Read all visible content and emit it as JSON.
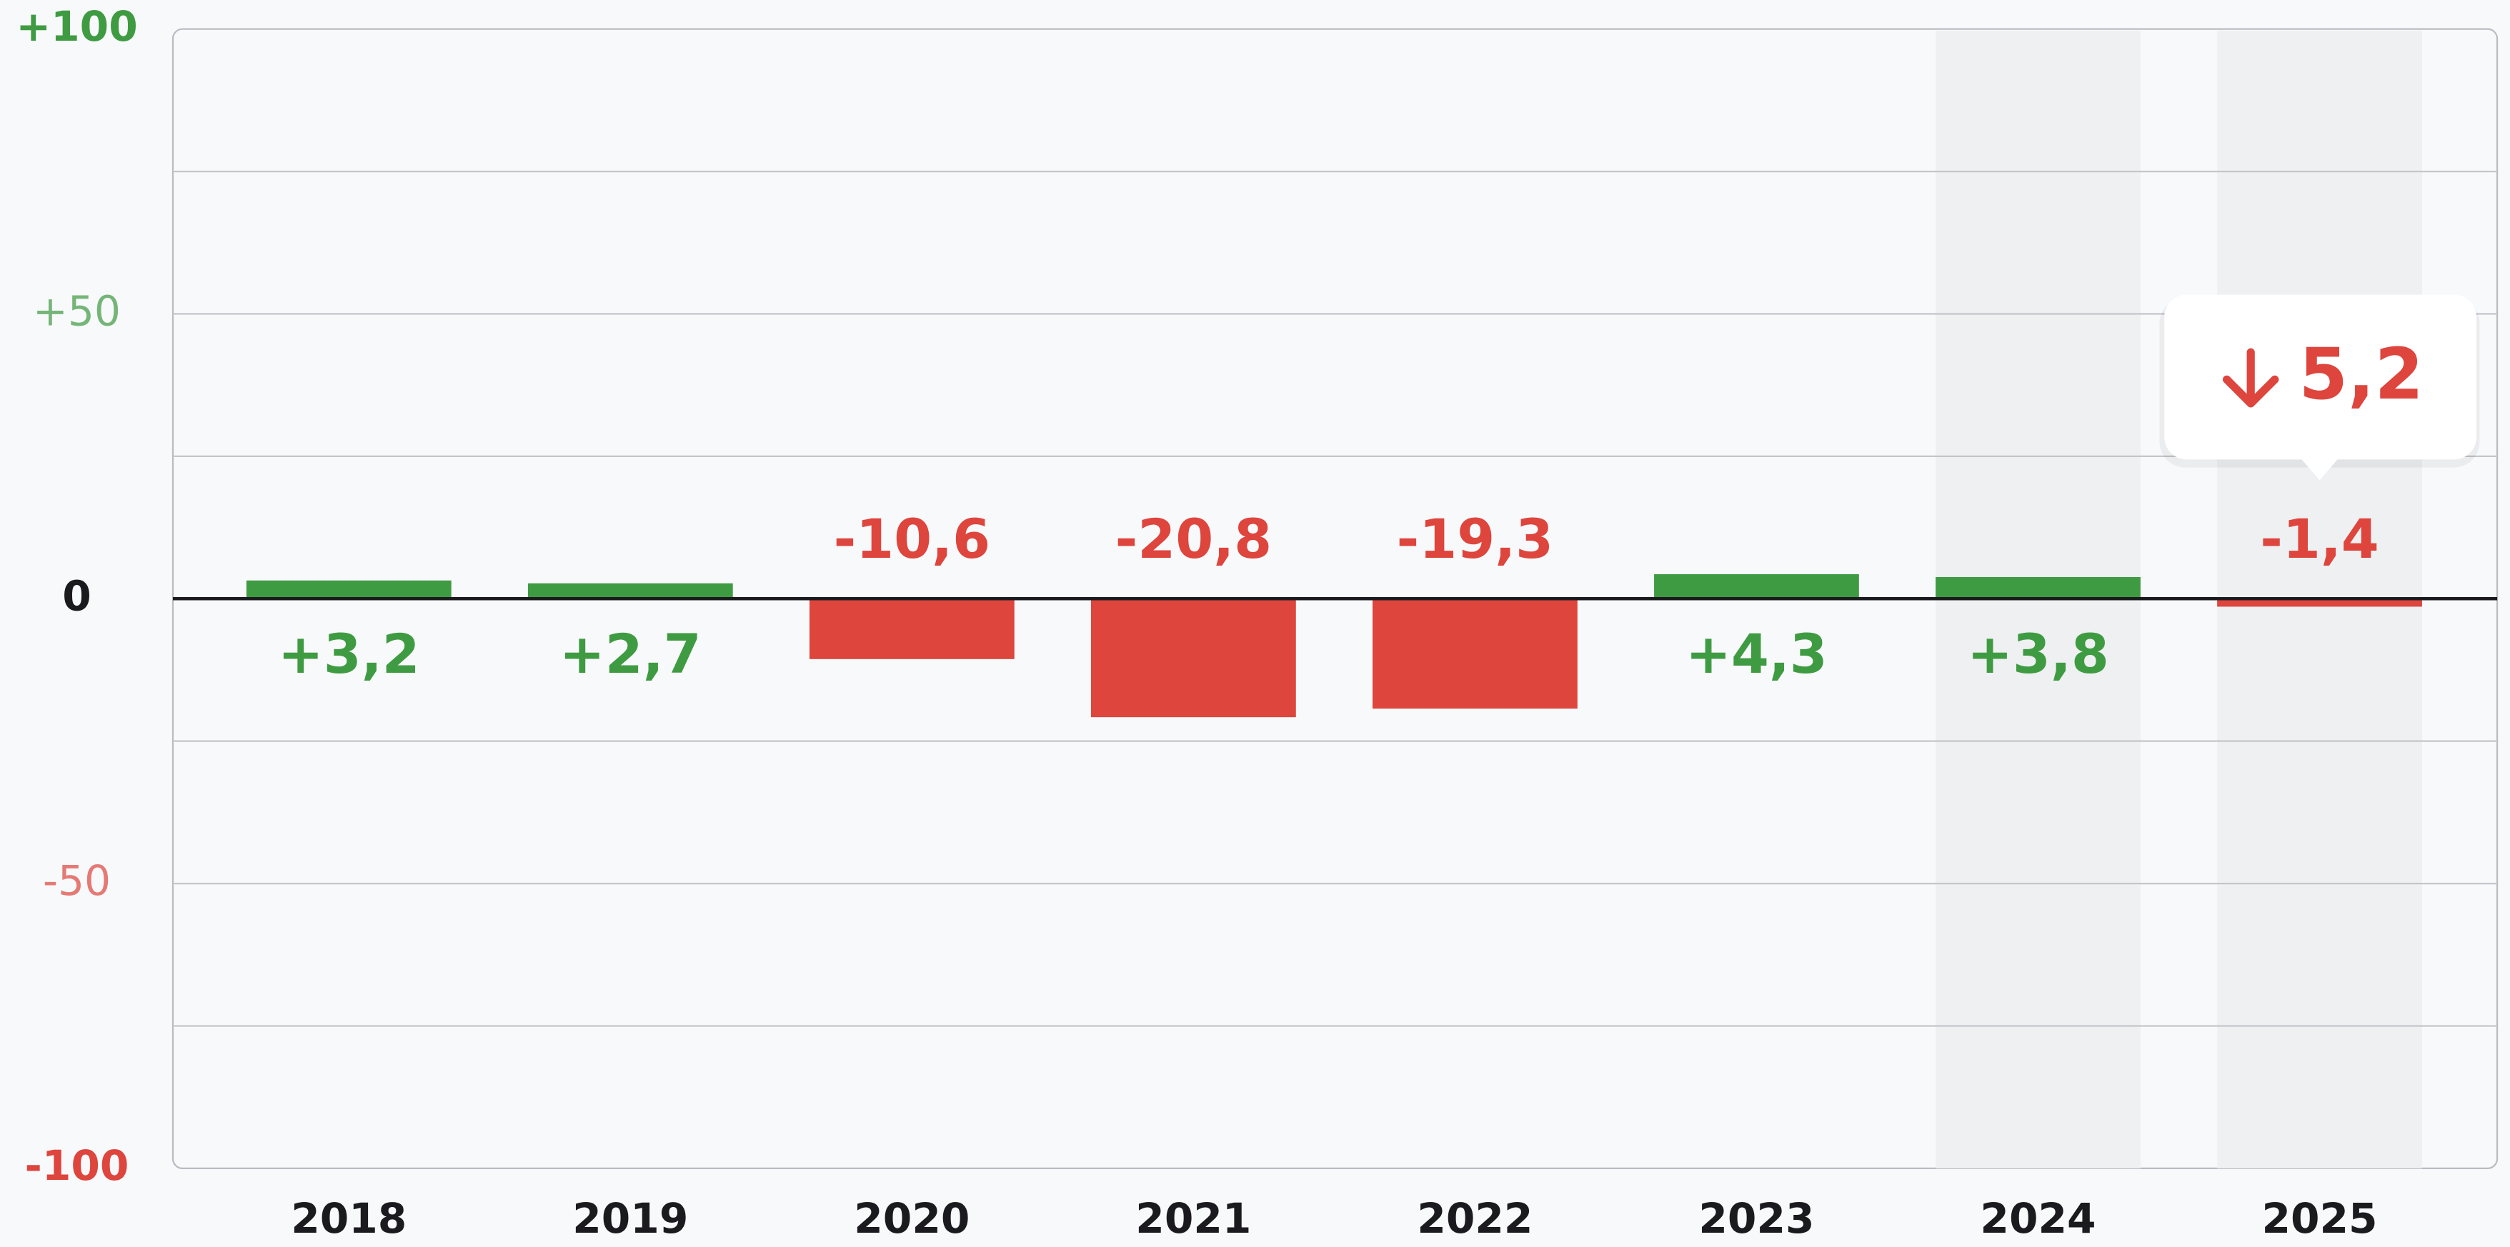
{
  "chart_data": {
    "type": "bar",
    "categories": [
      "2018",
      "2019",
      "2020",
      "2021",
      "2022",
      "2023",
      "2024",
      "2025"
    ],
    "values": [
      3.2,
      2.7,
      -10.6,
      -20.8,
      -19.3,
      4.3,
      3.8,
      -1.4
    ],
    "value_labels": [
      "+3,2",
      "+2,7",
      "-10,6",
      "-20,8",
      "-19,3",
      "+4,3",
      "+3,8",
      "-1,4"
    ],
    "positive_color": "#3f9b42",
    "negative_color": "#dd453d",
    "ylim": [
      -100,
      100
    ],
    "yticks": [
      {
        "value": 100,
        "label": "+100"
      },
      {
        "value": 50,
        "label": "+50"
      },
      0,
      -50,
      -100
    ],
    "minor_yticks": [
      75,
      25,
      -25,
      -75
    ],
    "grid": true,
    "highlight": [
      6,
      7
    ],
    "tooltip": {
      "index": 7,
      "text": "5,2"
    }
  }
}
